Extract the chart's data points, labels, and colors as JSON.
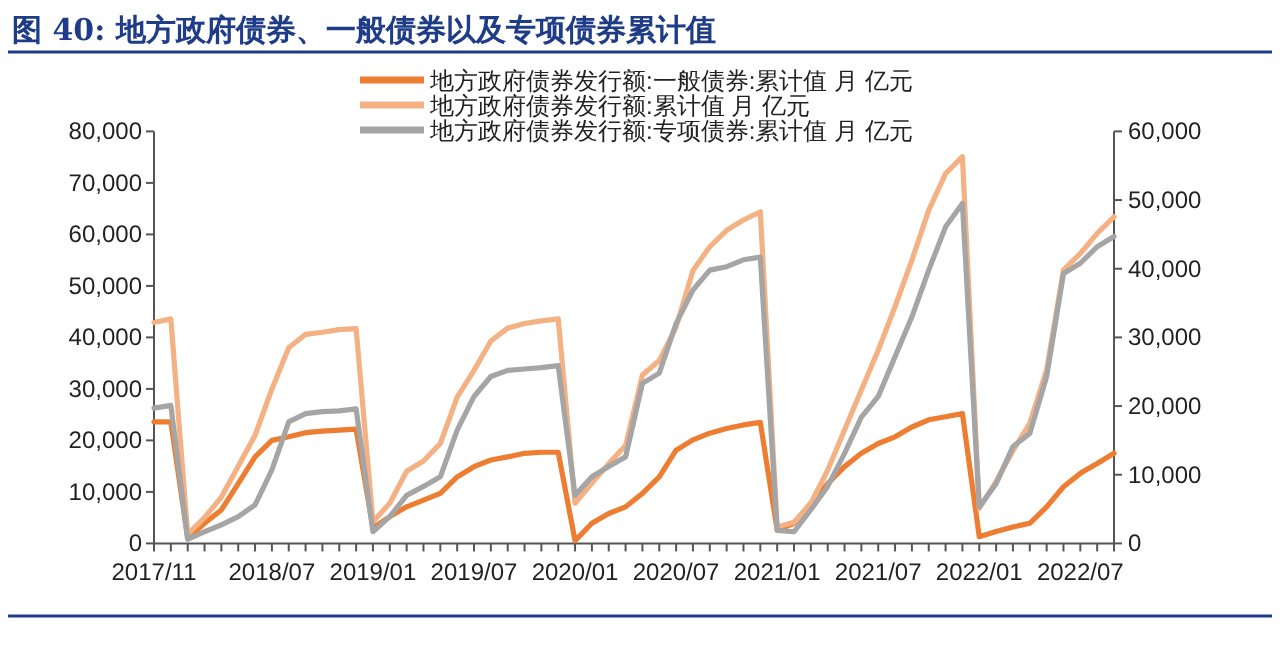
{
  "chart_data": {
    "type": "line",
    "title": "图 40: 地方政府债券、一般债券以及专项债券累计值",
    "categories": [
      "2017/11",
      null,
      null,
      null,
      null,
      null,
      null,
      "2018/07",
      null,
      null,
      null,
      null,
      null,
      "2019/01",
      null,
      null,
      null,
      null,
      null,
      "2019/07",
      null,
      null,
      null,
      null,
      null,
      "2020/01",
      null,
      null,
      null,
      null,
      null,
      "2020/07",
      null,
      null,
      null,
      null,
      null,
      "2021/01",
      null,
      null,
      null,
      null,
      null,
      "2021/07",
      null,
      null,
      null,
      null,
      null,
      "2022/01",
      null,
      null,
      null,
      null,
      null,
      "2022/07",
      null,
      null
    ],
    "series": [
      {
        "name": "地方政府债券发行额:一般债券:累计值 月 亿元",
        "color": "#ed7d31",
        "values": [
          23600,
          23600,
          1000,
          3900,
          6500,
          11600,
          16800,
          20000,
          20700,
          21500,
          21800,
          22000,
          22200,
          3000,
          5200,
          7100,
          8400,
          9700,
          12900,
          14900,
          16200,
          16800,
          17500,
          17700,
          17700,
          500,
          3900,
          5800,
          7100,
          9700,
          12900,
          18100,
          20100,
          21400,
          22300,
          23000,
          23500,
          2600,
          3900,
          7800,
          11600,
          14900,
          17500,
          19400,
          20700,
          22600,
          24000,
          24600,
          25200,
          1300,
          2300,
          3200,
          3900,
          7100,
          11000,
          13600,
          15500,
          17500
        ]
      },
      {
        "name": "地方政府债券发行额:累计值 月 亿元",
        "color": "#f4b183",
        "values": [
          42900,
          43600,
          1800,
          5000,
          9000,
          15000,
          21000,
          30000,
          38000,
          40600,
          41000,
          41500,
          41700,
          4200,
          7800,
          14000,
          16000,
          19400,
          28400,
          33600,
          39300,
          41800,
          42700,
          43200,
          43600,
          7800,
          11700,
          15500,
          19000,
          32700,
          35500,
          42000,
          53000,
          57600,
          60800,
          62800,
          64400,
          3200,
          4100,
          7800,
          14200,
          22000,
          29800,
          37500,
          46000,
          55000,
          64700,
          71800,
          75100,
          6800,
          12000,
          18000,
          23300,
          33700,
          53100,
          56300,
          60200,
          63400
        ]
      },
      {
        "name": "地方政府债券发行额:专项债券:累计值 月 亿元",
        "color": "#a5a5a5",
        "axis": "y2",
        "values": [
          19700,
          20100,
          600,
          1700,
          2700,
          3900,
          5600,
          10700,
          17700,
          18900,
          19200,
          19300,
          19600,
          1700,
          3900,
          7000,
          8300,
          9700,
          16500,
          21400,
          24300,
          25200,
          25400,
          25600,
          25900,
          7000,
          9700,
          11200,
          12600,
          23300,
          24800,
          32000,
          36900,
          39800,
          40300,
          41300,
          41700,
          1900,
          1700,
          4900,
          8300,
          13100,
          18400,
          21400,
          27200,
          33000,
          39800,
          46100,
          49500,
          5300,
          8700,
          14100,
          16000,
          24300,
          39300,
          40800,
          43200,
          44700
        ]
      }
    ],
    "ylim": [
      0,
      80000
    ],
    "yticks": [
      {
        "value": 0,
        "label": "0"
      },
      {
        "value": 10000,
        "label": "10,000"
      },
      {
        "value": 20000,
        "label": "20,000"
      },
      {
        "value": 30000,
        "label": "30,000"
      },
      {
        "value": 40000,
        "label": "40,000"
      },
      {
        "value": 50000,
        "label": "50,000"
      },
      {
        "value": 60000,
        "label": "60,000"
      },
      {
        "value": 70000,
        "label": "70,000"
      },
      {
        "value": 80000,
        "label": "80,000"
      }
    ],
    "y2lim": [
      0,
      60000
    ],
    "y2ticks": [
      {
        "value": 0,
        "label": "0"
      },
      {
        "value": 10000,
        "label": "10,000"
      },
      {
        "value": 20000,
        "label": "20,000"
      },
      {
        "value": 30000,
        "label": "30,000"
      },
      {
        "value": 40000,
        "label": "40,000"
      },
      {
        "value": 50000,
        "label": "50,000"
      },
      {
        "value": 60000,
        "label": "60,000"
      }
    ],
    "legend": "top",
    "grid": false,
    "marker": "none",
    "line_style": "solid"
  }
}
